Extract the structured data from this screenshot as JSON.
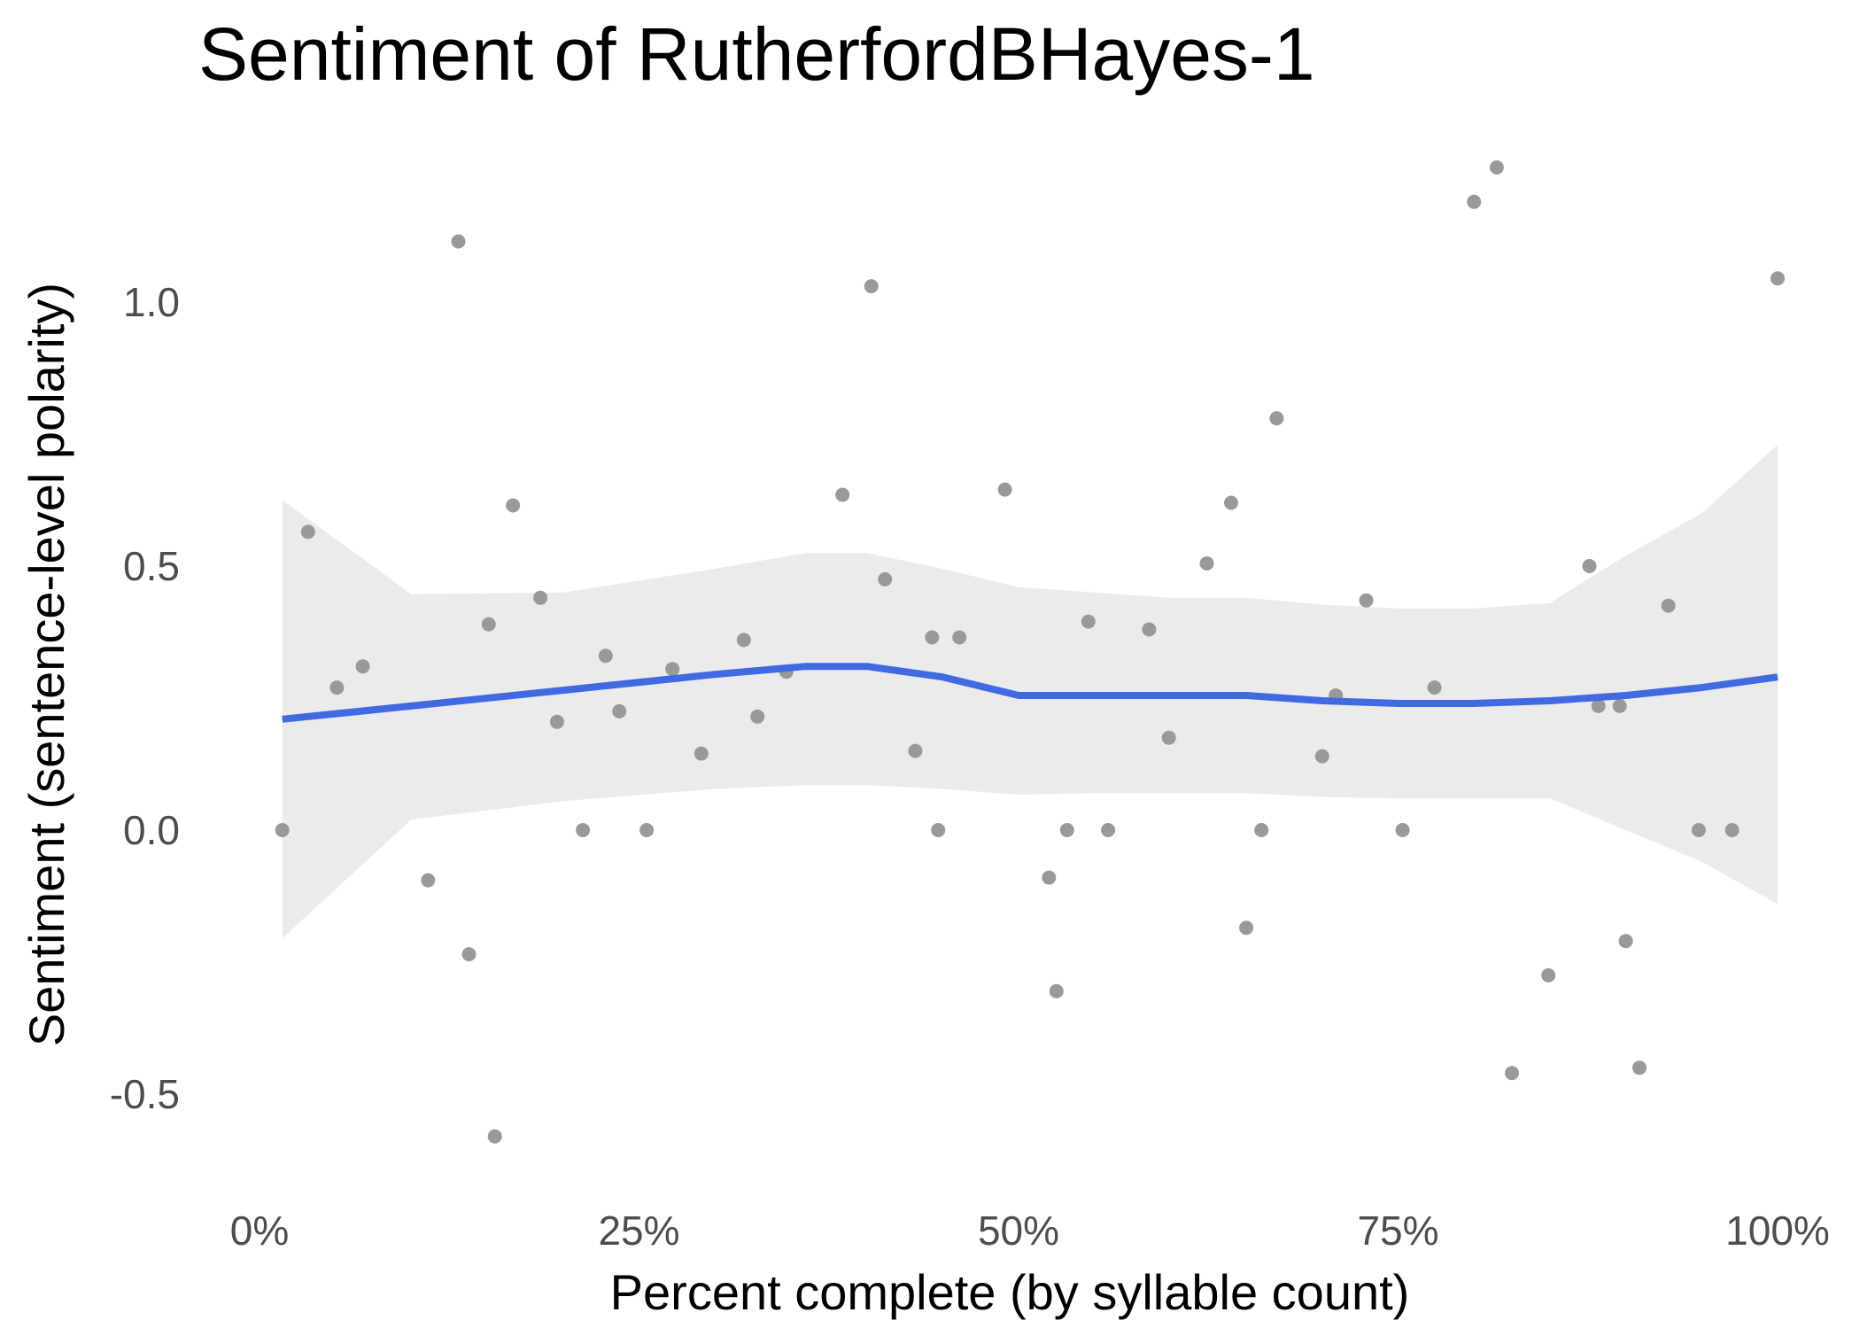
{
  "chart_data": {
    "type": "scatter",
    "title": "Sentiment of RutherfordBHayes-1",
    "xlabel": "Percent complete (by syllable count)",
    "ylabel": "Sentiment (sentence-level polarity)",
    "xlim": [
      0,
      1
    ],
    "ylim": [
      -0.65,
      1.27
    ],
    "x_ticks": [
      {
        "value": 0,
        "label": "0%"
      },
      {
        "value": 0.25,
        "label": "25%"
      },
      {
        "value": 0.5,
        "label": "50%"
      },
      {
        "value": 0.75,
        "label": "75%"
      },
      {
        "value": 1,
        "label": "100%"
      }
    ],
    "y_ticks": [
      {
        "value": -0.5,
        "label": "-0.5"
      },
      {
        "value": 0,
        "label": "0.0"
      },
      {
        "value": 0.5,
        "label": "0.5"
      },
      {
        "value": 1,
        "label": "1.0"
      }
    ],
    "grid": false,
    "points": [
      [
        0.015,
        0.0
      ],
      [
        0.032,
        0.565
      ],
      [
        0.051,
        0.27
      ],
      [
        0.068,
        0.31
      ],
      [
        0.111,
        -0.095
      ],
      [
        0.131,
        1.115
      ],
      [
        0.138,
        -0.235
      ],
      [
        0.151,
        0.39
      ],
      [
        0.155,
        -0.58
      ],
      [
        0.167,
        0.615
      ],
      [
        0.185,
        0.44
      ],
      [
        0.196,
        0.205
      ],
      [
        0.213,
        0.0
      ],
      [
        0.228,
        0.33
      ],
      [
        0.237,
        0.225
      ],
      [
        0.255,
        0.0
      ],
      [
        0.272,
        0.305
      ],
      [
        0.291,
        0.145
      ],
      [
        0.319,
        0.36
      ],
      [
        0.328,
        0.215
      ],
      [
        0.347,
        0.3
      ],
      [
        0.384,
        0.635
      ],
      [
        0.403,
        1.03
      ],
      [
        0.412,
        0.475
      ],
      [
        0.432,
        0.15
      ],
      [
        0.443,
        0.365
      ],
      [
        0.447,
        0.0
      ],
      [
        0.461,
        0.365
      ],
      [
        0.491,
        0.645
      ],
      [
        0.52,
        -0.09
      ],
      [
        0.525,
        -0.305
      ],
      [
        0.532,
        0.0
      ],
      [
        0.546,
        0.395
      ],
      [
        0.559,
        0.0
      ],
      [
        0.586,
        0.38
      ],
      [
        0.599,
        0.175
      ],
      [
        0.624,
        0.505
      ],
      [
        0.64,
        0.62
      ],
      [
        0.65,
        -0.185
      ],
      [
        0.66,
        0.0
      ],
      [
        0.67,
        0.78
      ],
      [
        0.7,
        0.14
      ],
      [
        0.709,
        0.255
      ],
      [
        0.729,
        0.435
      ],
      [
        0.753,
        0.0
      ],
      [
        0.774,
        0.27
      ],
      [
        0.8,
        1.19
      ],
      [
        0.815,
        1.255
      ],
      [
        0.825,
        -0.46
      ],
      [
        0.849,
        -0.275
      ],
      [
        0.876,
        0.5
      ],
      [
        0.882,
        0.235
      ],
      [
        0.896,
        0.235
      ],
      [
        0.9,
        -0.21
      ],
      [
        0.909,
        -0.45
      ],
      [
        0.928,
        0.425
      ],
      [
        0.948,
        0.0
      ],
      [
        0.97,
        0.0
      ],
      [
        1.0,
        1.045
      ]
    ],
    "smooth": {
      "x": [
        0.015,
        0.1,
        0.2,
        0.3,
        0.36,
        0.4,
        0.45,
        0.5,
        0.55,
        0.6,
        0.65,
        0.7,
        0.75,
        0.8,
        0.85,
        0.9,
        0.95,
        1.0
      ],
      "y": [
        0.21,
        0.235,
        0.265,
        0.295,
        0.31,
        0.31,
        0.29,
        0.255,
        0.255,
        0.255,
        0.255,
        0.245,
        0.24,
        0.24,
        0.245,
        0.255,
        0.27,
        0.29
      ],
      "lower": [
        -0.205,
        0.02,
        0.055,
        0.078,
        0.085,
        0.085,
        0.078,
        0.067,
        0.07,
        0.07,
        0.07,
        0.063,
        0.06,
        0.06,
        0.06,
        0.0,
        -0.06,
        -0.14
      ],
      "upper": [
        0.625,
        0.447,
        0.45,
        0.495,
        0.525,
        0.525,
        0.495,
        0.46,
        0.45,
        0.44,
        0.44,
        0.427,
        0.42,
        0.42,
        0.43,
        0.52,
        0.6,
        0.73
      ]
    },
    "colors": {
      "points": "#999999",
      "smooth_line": "#4169e1",
      "confidence_band": "#ebebeb"
    }
  }
}
